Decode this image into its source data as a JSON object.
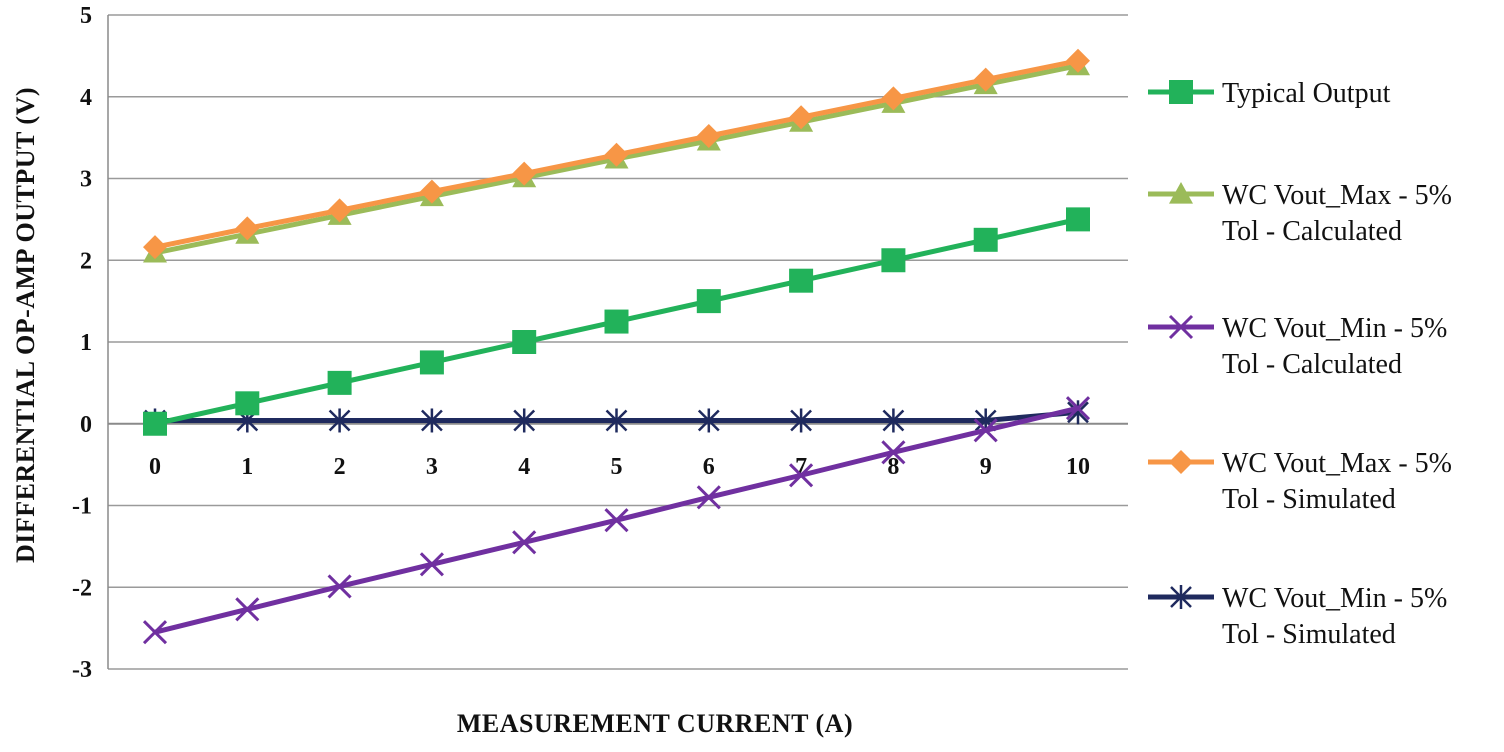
{
  "chart_data": {
    "type": "line",
    "title": "",
    "xlabel": "MEASUREMENT CURRENT (A)",
    "ylabel": "DIFFERENTIAL OP-AMP OUTPUT (V)",
    "x": [
      0,
      1,
      2,
      3,
      4,
      5,
      6,
      7,
      8,
      9,
      10
    ],
    "xticks": [
      "0",
      "1",
      "2",
      "3",
      "4",
      "5",
      "6",
      "7",
      "8",
      "9",
      "10"
    ],
    "yticks": [
      "5",
      "4",
      "3",
      "2",
      "1",
      "0",
      "-1",
      "-2",
      "-3"
    ],
    "ylim": [
      -3,
      5
    ],
    "grid": "horizontal",
    "legend_position": "right",
    "series": [
      {
        "name": "Typical Output",
        "name_lines": [
          "Typical Output"
        ],
        "color": "#22b25a",
        "marker": "square",
        "values": [
          0,
          0.25,
          0.5,
          0.75,
          1.0,
          1.25,
          1.5,
          1.75,
          2.0,
          2.25,
          2.5
        ]
      },
      {
        "name": "WC Vout_Max - 5% Tol - Calculated",
        "name_lines": [
          "WC Vout_Max - 5%",
          "Tol - Calculated"
        ],
        "color": "#9bbb59",
        "marker": "triangle",
        "values": [
          2.09,
          2.32,
          2.55,
          2.78,
          3.01,
          3.24,
          3.46,
          3.69,
          3.92,
          4.15,
          4.38
        ]
      },
      {
        "name": "WC Vout_Min - 5% Tol - Calculated",
        "name_lines": [
          "WC Vout_Min - 5%",
          "Tol - Calculated"
        ],
        "color": "#7030a0",
        "marker": "x",
        "values": [
          -2.55,
          -2.27,
          -1.99,
          -1.72,
          -1.45,
          -1.18,
          -0.9,
          -0.63,
          -0.35,
          -0.08,
          0.19
        ]
      },
      {
        "name": "WC Vout_Max - 5% Tol - Simulated",
        "name_lines": [
          "WC Vout_Max - 5%",
          "Tol - Simulated"
        ],
        "color": "#f79646",
        "marker": "diamond",
        "values": [
          2.16,
          2.39,
          2.61,
          2.84,
          3.06,
          3.29,
          3.52,
          3.75,
          3.98,
          4.21,
          4.44
        ]
      },
      {
        "name": "WC Vout_Min - 5% Tol - Simulated",
        "name_lines": [
          "WC Vout_Min - 5%",
          "Tol - Simulated"
        ],
        "color": "#1f2a5e",
        "marker": "star",
        "values": [
          0.04,
          0.04,
          0.04,
          0.04,
          0.04,
          0.04,
          0.04,
          0.04,
          0.04,
          0.04,
          0.14
        ]
      }
    ]
  }
}
